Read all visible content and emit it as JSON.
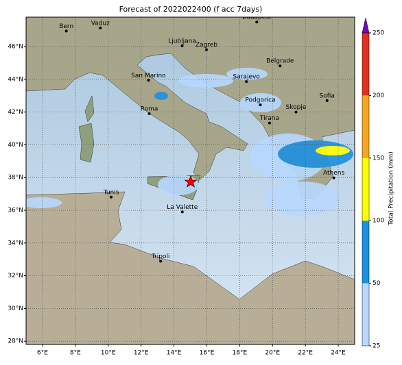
{
  "map": {
    "title": "Forecast of 2022022400 (f acc 7days)",
    "xlim": [
      5,
      25
    ],
    "ylim": [
      27.8,
      47.8
    ],
    "xticks": [
      {
        "value": 6,
        "label": "6°E"
      },
      {
        "value": 8,
        "label": "8°E"
      },
      {
        "value": 10,
        "label": "10°E"
      },
      {
        "value": 12,
        "label": "12°E"
      },
      {
        "value": 14,
        "label": "14°E"
      },
      {
        "value": 16,
        "label": "16°E"
      },
      {
        "value": 18,
        "label": "18°E"
      },
      {
        "value": 20,
        "label": "20°E"
      },
      {
        "value": 22,
        "label": "22°E"
      },
      {
        "value": 24,
        "label": "24°E"
      }
    ],
    "yticks": [
      {
        "value": 28,
        "label": "28°N"
      },
      {
        "value": 30,
        "label": "30°N"
      },
      {
        "value": 32,
        "label": "32°N"
      },
      {
        "value": 34,
        "label": "34°N"
      },
      {
        "value": 36,
        "label": "36°N"
      },
      {
        "value": 38,
        "label": "38°N"
      },
      {
        "value": 40,
        "label": "40°N"
      },
      {
        "value": 42,
        "label": "42°N"
      },
      {
        "value": 44,
        "label": "44°N"
      },
      {
        "value": 46,
        "label": "46°N"
      }
    ],
    "grid": true,
    "cities": [
      {
        "name": "Bern",
        "lon": 7.45,
        "lat": 46.95
      },
      {
        "name": "Vaduz",
        "lon": 9.52,
        "lat": 47.14
      },
      {
        "name": "Budapest",
        "lon": 19.04,
        "lat": 47.5
      },
      {
        "name": "Ljubljana",
        "lon": 14.5,
        "lat": 46.05
      },
      {
        "name": "Zagreb",
        "lon": 15.98,
        "lat": 45.81
      },
      {
        "name": "Belgrade",
        "lon": 20.46,
        "lat": 44.82
      },
      {
        "name": "San Marino",
        "lon": 12.45,
        "lat": 43.94
      },
      {
        "name": "Sarajevo",
        "lon": 18.41,
        "lat": 43.86
      },
      {
        "name": "Sofia",
        "lon": 23.32,
        "lat": 42.7
      },
      {
        "name": "Roma",
        "lon": 12.5,
        "lat": 41.9
      },
      {
        "name": "Podgorica",
        "lon": 19.26,
        "lat": 42.44
      },
      {
        "name": "Skopje",
        "lon": 21.43,
        "lat": 42.0
      },
      {
        "name": "Tirana",
        "lon": 19.82,
        "lat": 41.33
      },
      {
        "name": "Athens",
        "lon": 23.73,
        "lat": 37.98
      },
      {
        "name": "Tunis",
        "lon": 10.18,
        "lat": 36.8
      },
      {
        "name": "La Valette",
        "lon": 14.51,
        "lat": 35.9
      },
      {
        "name": "Tripoli",
        "lon": 13.19,
        "lat": 32.89
      }
    ]
  },
  "colorbar": {
    "label": "Total Precipitation (mm)",
    "ticks": [
      25,
      50,
      100,
      150,
      200,
      250
    ],
    "colors": [
      "#b8d8ff",
      "#1e90e0",
      "#ffff00",
      "#f5a623",
      "#e0301e"
    ],
    "extend_color": "#7a00c0"
  }
}
